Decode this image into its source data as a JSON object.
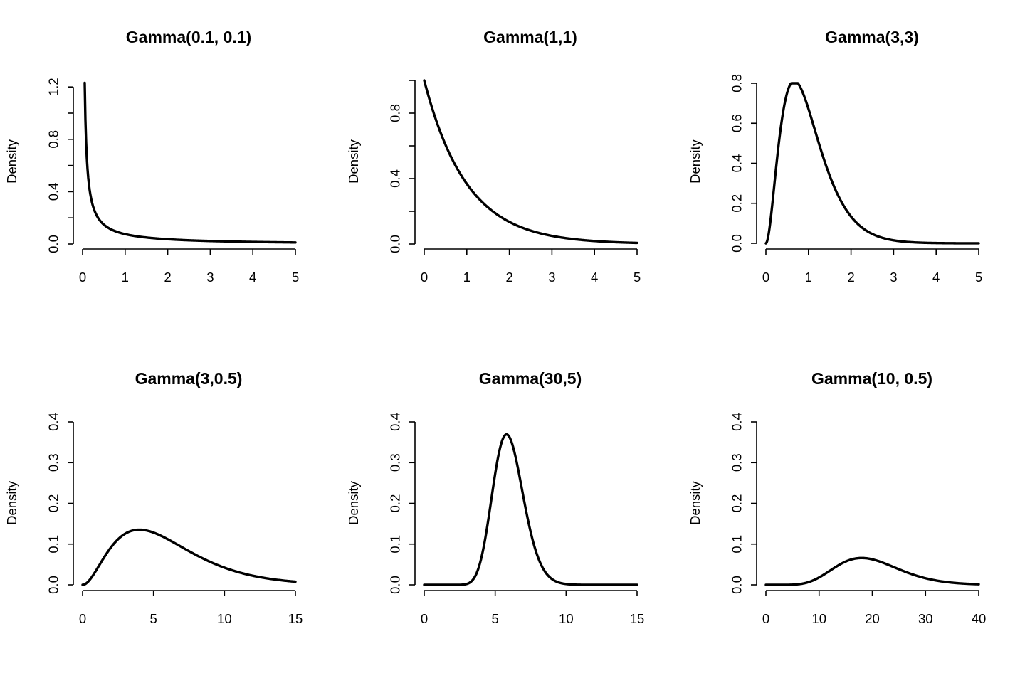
{
  "chart_data": [
    {
      "type": "line",
      "title": "Gamma(0.1, 0.1)",
      "xlabel": "",
      "ylabel": "Density",
      "shape": 0.1,
      "rate": 0.1,
      "xlim": [
        0,
        5
      ],
      "ylim": [
        0,
        1.25
      ],
      "xticks": [
        0,
        1,
        2,
        3,
        4,
        5
      ],
      "yticks": [
        0.0,
        0.2,
        0.4,
        0.6,
        0.8,
        1.0,
        1.2
      ],
      "ytick_labels": [
        "0.0",
        "",
        "0.4",
        "",
        "0.8",
        "",
        "1.2"
      ],
      "x": [
        0.05,
        0.1,
        0.15,
        0.2,
        0.3,
        0.5,
        0.75,
        1,
        1.5,
        2,
        2.5,
        3,
        3.5,
        4,
        4.5,
        5
      ],
      "y": [
        1.23,
        0.651,
        0.449,
        0.344,
        0.236,
        0.144,
        0.098,
        0.075,
        0.051,
        0.039,
        0.031,
        0.026,
        0.022,
        0.019,
        0.017,
        0.015
      ]
    },
    {
      "type": "line",
      "title": "Gamma(1,1)",
      "xlabel": "",
      "ylabel": "Density",
      "shape": 1,
      "rate": 1,
      "xlim": [
        0,
        5
      ],
      "ylim": [
        0,
        1.0
      ],
      "xticks": [
        0,
        1,
        2,
        3,
        4,
        5
      ],
      "yticks": [
        0.0,
        0.2,
        0.4,
        0.6,
        0.8,
        1.0
      ],
      "ytick_labels": [
        "0.0",
        "",
        "0.4",
        "",
        "0.8",
        ""
      ],
      "x": [
        0,
        0.25,
        0.5,
        0.75,
        1,
        1.25,
        1.5,
        1.75,
        2,
        2.5,
        3,
        3.5,
        4,
        4.5,
        5
      ],
      "y": [
        1.0,
        0.779,
        0.607,
        0.472,
        0.368,
        0.287,
        0.223,
        0.174,
        0.135,
        0.082,
        0.05,
        0.03,
        0.018,
        0.011,
        0.007
      ]
    },
    {
      "type": "line",
      "title": "Gamma(3,3)",
      "xlabel": "",
      "ylabel": "Density",
      "shape": 3,
      "rate": 3,
      "xlim": [
        0,
        5
      ],
      "ylim": [
        0,
        0.8
      ],
      "xticks": [
        0,
        1,
        2,
        3,
        4,
        5
      ],
      "yticks": [
        0.0,
        0.2,
        0.4,
        0.6,
        0.8
      ],
      "ytick_labels": [
        "0.0",
        "0.2",
        "0.4",
        "0.6",
        "0.8"
      ],
      "x": [
        0,
        0.1,
        0.2,
        0.3,
        0.4,
        0.5,
        0.667,
        0.8,
        1,
        1.25,
        1.5,
        1.75,
        2,
        2.5,
        3,
        3.5,
        4,
        5
      ],
      "y": [
        0,
        0.1,
        0.296,
        0.492,
        0.651,
        0.753,
        0.812,
        0.783,
        0.672,
        0.495,
        0.337,
        0.217,
        0.134,
        0.047,
        0.015,
        0.005,
        0.001,
        0.0001
      ]
    },
    {
      "type": "line",
      "title": "Gamma(3,0.5)",
      "xlabel": "",
      "ylabel": "Density",
      "shape": 3,
      "rate": 0.5,
      "xlim": [
        0,
        15
      ],
      "ylim": [
        0,
        0.4
      ],
      "xticks": [
        0,
        5,
        10,
        15
      ],
      "yticks": [
        0.0,
        0.1,
        0.2,
        0.3,
        0.4
      ],
      "ytick_labels": [
        "0.0",
        "0.1",
        "0.2",
        "0.3",
        "0.4"
      ],
      "x": [
        0,
        0.5,
        1,
        1.5,
        2,
        3,
        4,
        5,
        6,
        7,
        8,
        9,
        10,
        11,
        12,
        13,
        14,
        15
      ],
      "y": [
        0,
        0.024,
        0.076,
        0.106,
        0.092,
        0.126,
        0.135,
        0.128,
        0.112,
        0.094,
        0.073,
        0.056,
        0.042,
        0.031,
        0.022,
        0.015,
        0.011,
        0.007
      ]
    },
    {
      "type": "line",
      "title": "Gamma(30,5)",
      "xlabel": "",
      "ylabel": "Density",
      "shape": 30,
      "rate": 5,
      "xlim": [
        0,
        15
      ],
      "ylim": [
        0,
        0.4
      ],
      "xticks": [
        0,
        5,
        10,
        15
      ],
      "yticks": [
        0.0,
        0.1,
        0.2,
        0.3,
        0.4
      ],
      "ytick_labels": [
        "0.0",
        "0.1",
        "0.2",
        "0.3",
        "0.4"
      ],
      "x": [
        0,
        2,
        3,
        3.5,
        4,
        4.5,
        5,
        5.5,
        5.8,
        6,
        6.5,
        7,
        7.5,
        8,
        8.5,
        9,
        10,
        12,
        15
      ],
      "y": [
        0,
        0.0002,
        0.006,
        0.024,
        0.067,
        0.14,
        0.235,
        0.322,
        0.366,
        0.364,
        0.308,
        0.222,
        0.142,
        0.079,
        0.04,
        0.018,
        0.003,
        0.0001,
        0
      ]
    },
    {
      "type": "line",
      "title": "Gamma(10, 0.5)",
      "xlabel": "",
      "ylabel": "Density",
      "shape": 10,
      "rate": 0.5,
      "xlim": [
        0,
        40
      ],
      "ylim": [
        0,
        0.4
      ],
      "xticks": [
        0,
        10,
        20,
        30,
        40
      ],
      "yticks": [
        0.0,
        0.1,
        0.2,
        0.3,
        0.4
      ],
      "ytick_labels": [
        "0.0",
        "0.1",
        "0.2",
        "0.3",
        "0.4"
      ],
      "x": [
        0,
        4,
        6,
        8,
        10,
        12,
        14,
        16,
        18,
        20,
        22,
        24,
        26,
        28,
        30,
        33,
        36,
        40
      ],
      "y": [
        0,
        0.001,
        0.004,
        0.012,
        0.023,
        0.037,
        0.051,
        0.061,
        0.066,
        0.065,
        0.059,
        0.05,
        0.04,
        0.03,
        0.021,
        0.012,
        0.006,
        0.002
      ]
    }
  ]
}
